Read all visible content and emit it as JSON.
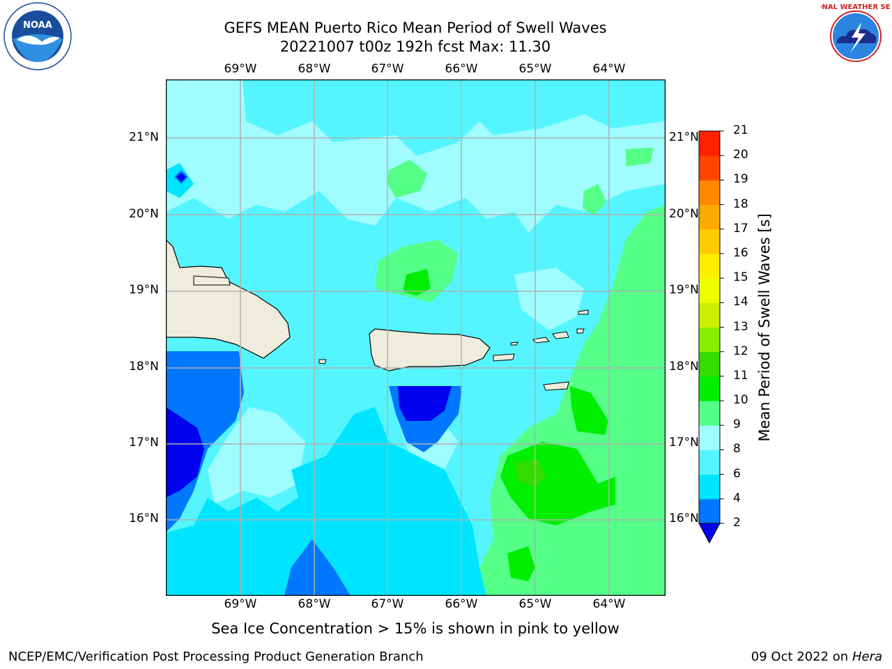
{
  "header": {
    "title_line1": "GEFS MEAN Puerto Rico Mean Period of Swell Waves",
    "title_line2": "20221007 t00z 192h fcst   Max: 11.30"
  },
  "logos": {
    "noaa": {
      "text": "NOAA",
      "ring_text": "NATIONAL OCEANIC AND ATMOSPHERIC ADMINISTRATION · U.S. DEPARTMENT OF COMMERCE"
    },
    "nws": {
      "ring_text": "NATIONAL WEATHER SERVICE"
    }
  },
  "map": {
    "lon_labels": [
      "69°W",
      "68°W",
      "67°W",
      "66°W",
      "65°W",
      "64°W"
    ],
    "lat_labels": [
      "21°N",
      "20°N",
      "19°N",
      "18°N",
      "17°N",
      "16°N"
    ],
    "land_color": "#eeecdc",
    "gridline_color": "#b0b0b0"
  },
  "colorbar": {
    "title": "Mean Period of Swell Waves [s]",
    "ticks": [
      "2",
      "4",
      "6",
      "8",
      "9",
      "10",
      "11",
      "12",
      "13",
      "14",
      "15",
      "16",
      "17",
      "18",
      "19",
      "20",
      "21"
    ],
    "colors": [
      "#0000ee",
      "#0077ff",
      "#00e5ff",
      "#55f5ff",
      "#9ffcff",
      "#55ff88",
      "#00ee00",
      "#33dd00",
      "#88ee00",
      "#ccee00",
      "#eeff00",
      "#ffee00",
      "#ffcc00",
      "#ffaa00",
      "#ff8800",
      "#ff4400",
      "#ff2200",
      "#ff0000"
    ]
  },
  "footer": {
    "caption": "Sea Ice Concentration > 15% is shown in pink to yellow",
    "left": "NCEP/EMC/Verification Post Processing Product Generation Branch",
    "right_date": "09 Oct 2022 on",
    "right_host": "Hera"
  }
}
